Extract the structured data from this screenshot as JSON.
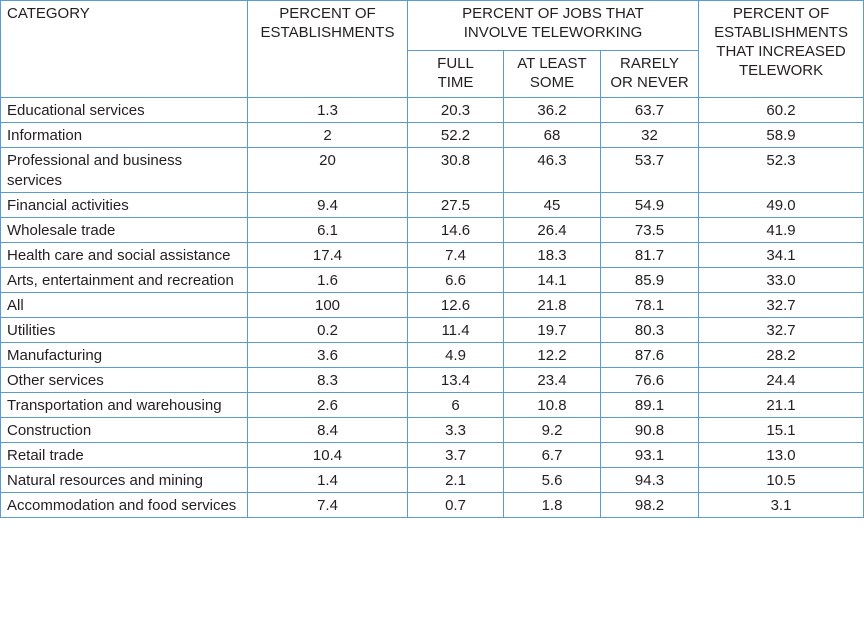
{
  "table": {
    "headers": {
      "category": "CATEGORY",
      "establishments": "PERCENT OF ESTABLISHMENTS",
      "jobs_group": "PERCENT OF JOBS THAT INVOLVE TELEWORKING",
      "full_time": "FULL TIME",
      "at_least_some": "AT LEAST SOME",
      "rarely_or_never": "RARELY OR NEVER",
      "increased": "PERCENT OF ESTABLISHMENTS THAT INCREASED TELEWORK"
    },
    "rows": [
      [
        "Educational services",
        "1.3",
        "20.3",
        "36.2",
        "63.7",
        "60.2"
      ],
      [
        "Information",
        "2",
        "52.2",
        "68",
        "32",
        "58.9"
      ],
      [
        "Professional and business services",
        "20",
        "30.8",
        "46.3",
        "53.7",
        "52.3"
      ],
      [
        "Financial activities",
        "9.4",
        "27.5",
        "45",
        "54.9",
        "49.0"
      ],
      [
        "Wholesale trade",
        "6.1",
        "14.6",
        "26.4",
        "73.5",
        "41.9"
      ],
      [
        "Health care and social assistance",
        "17.4",
        "7.4",
        "18.3",
        "81.7",
        "34.1"
      ],
      [
        "Arts, entertainment and recreation",
        "1.6",
        "6.6",
        "14.1",
        "85.9",
        "33.0"
      ],
      [
        "All",
        "100",
        "12.6",
        "21.8",
        "78.1",
        "32.7"
      ],
      [
        "Utilities",
        "0.2",
        "11.4",
        "19.7",
        "80.3",
        "32.7"
      ],
      [
        "Manufacturing",
        "3.6",
        "4.9",
        "12.2",
        "87.6",
        "28.2"
      ],
      [
        "Other services",
        "8.3",
        "13.4",
        "23.4",
        "76.6",
        "24.4"
      ],
      [
        "Transportation and warehousing",
        "2.6",
        "6",
        "10.8",
        "89.1",
        "21.1"
      ],
      [
        "Construction",
        "8.4",
        "3.3",
        "9.2",
        "90.8",
        "15.1"
      ],
      [
        "Retail trade",
        "10.4",
        "3.7",
        "6.7",
        "93.1",
        "13.0"
      ],
      [
        "Natural resources and mining",
        "1.4",
        "2.1",
        "5.6",
        "94.3",
        "10.5"
      ],
      [
        "Accommodation and food services",
        "7.4",
        "0.7",
        "1.8",
        "98.2",
        "3.1"
      ]
    ]
  }
}
